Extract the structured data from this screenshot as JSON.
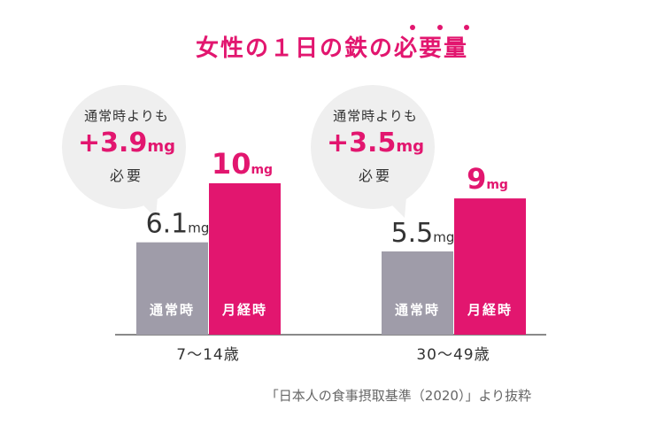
{
  "title": "女性の１日の鉄の必要量",
  "colors": {
    "accent": "#e2166f",
    "normal": "#9f9ca9",
    "bubble": "#efefef",
    "text": "#333333"
  },
  "chart_data": {
    "type": "bar",
    "title": "女性の１日の鉄の必要量",
    "unit": "mg",
    "categories": [
      "7～14歳",
      "30～49歳"
    ],
    "series": [
      {
        "name": "通常時",
        "values": [
          6.1,
          5.5
        ]
      },
      {
        "name": "月経時",
        "values": [
          10,
          9
        ]
      }
    ],
    "data_labels": [
      {
        "normal": "6.1",
        "menstrual": "10"
      },
      {
        "normal": "5.5",
        "menstrual": "9"
      }
    ],
    "ylim": [
      0,
      10
    ]
  },
  "bubbles": [
    {
      "line1": "通常時よりも",
      "diff": "+3.9",
      "unit": "mg",
      "line3": "必要"
    },
    {
      "line1": "通常時よりも",
      "diff": "+3.5",
      "unit": "mg",
      "line3": "必要"
    }
  ],
  "source": "「日本人の食事摂取基準（2020）」より抜粋"
}
